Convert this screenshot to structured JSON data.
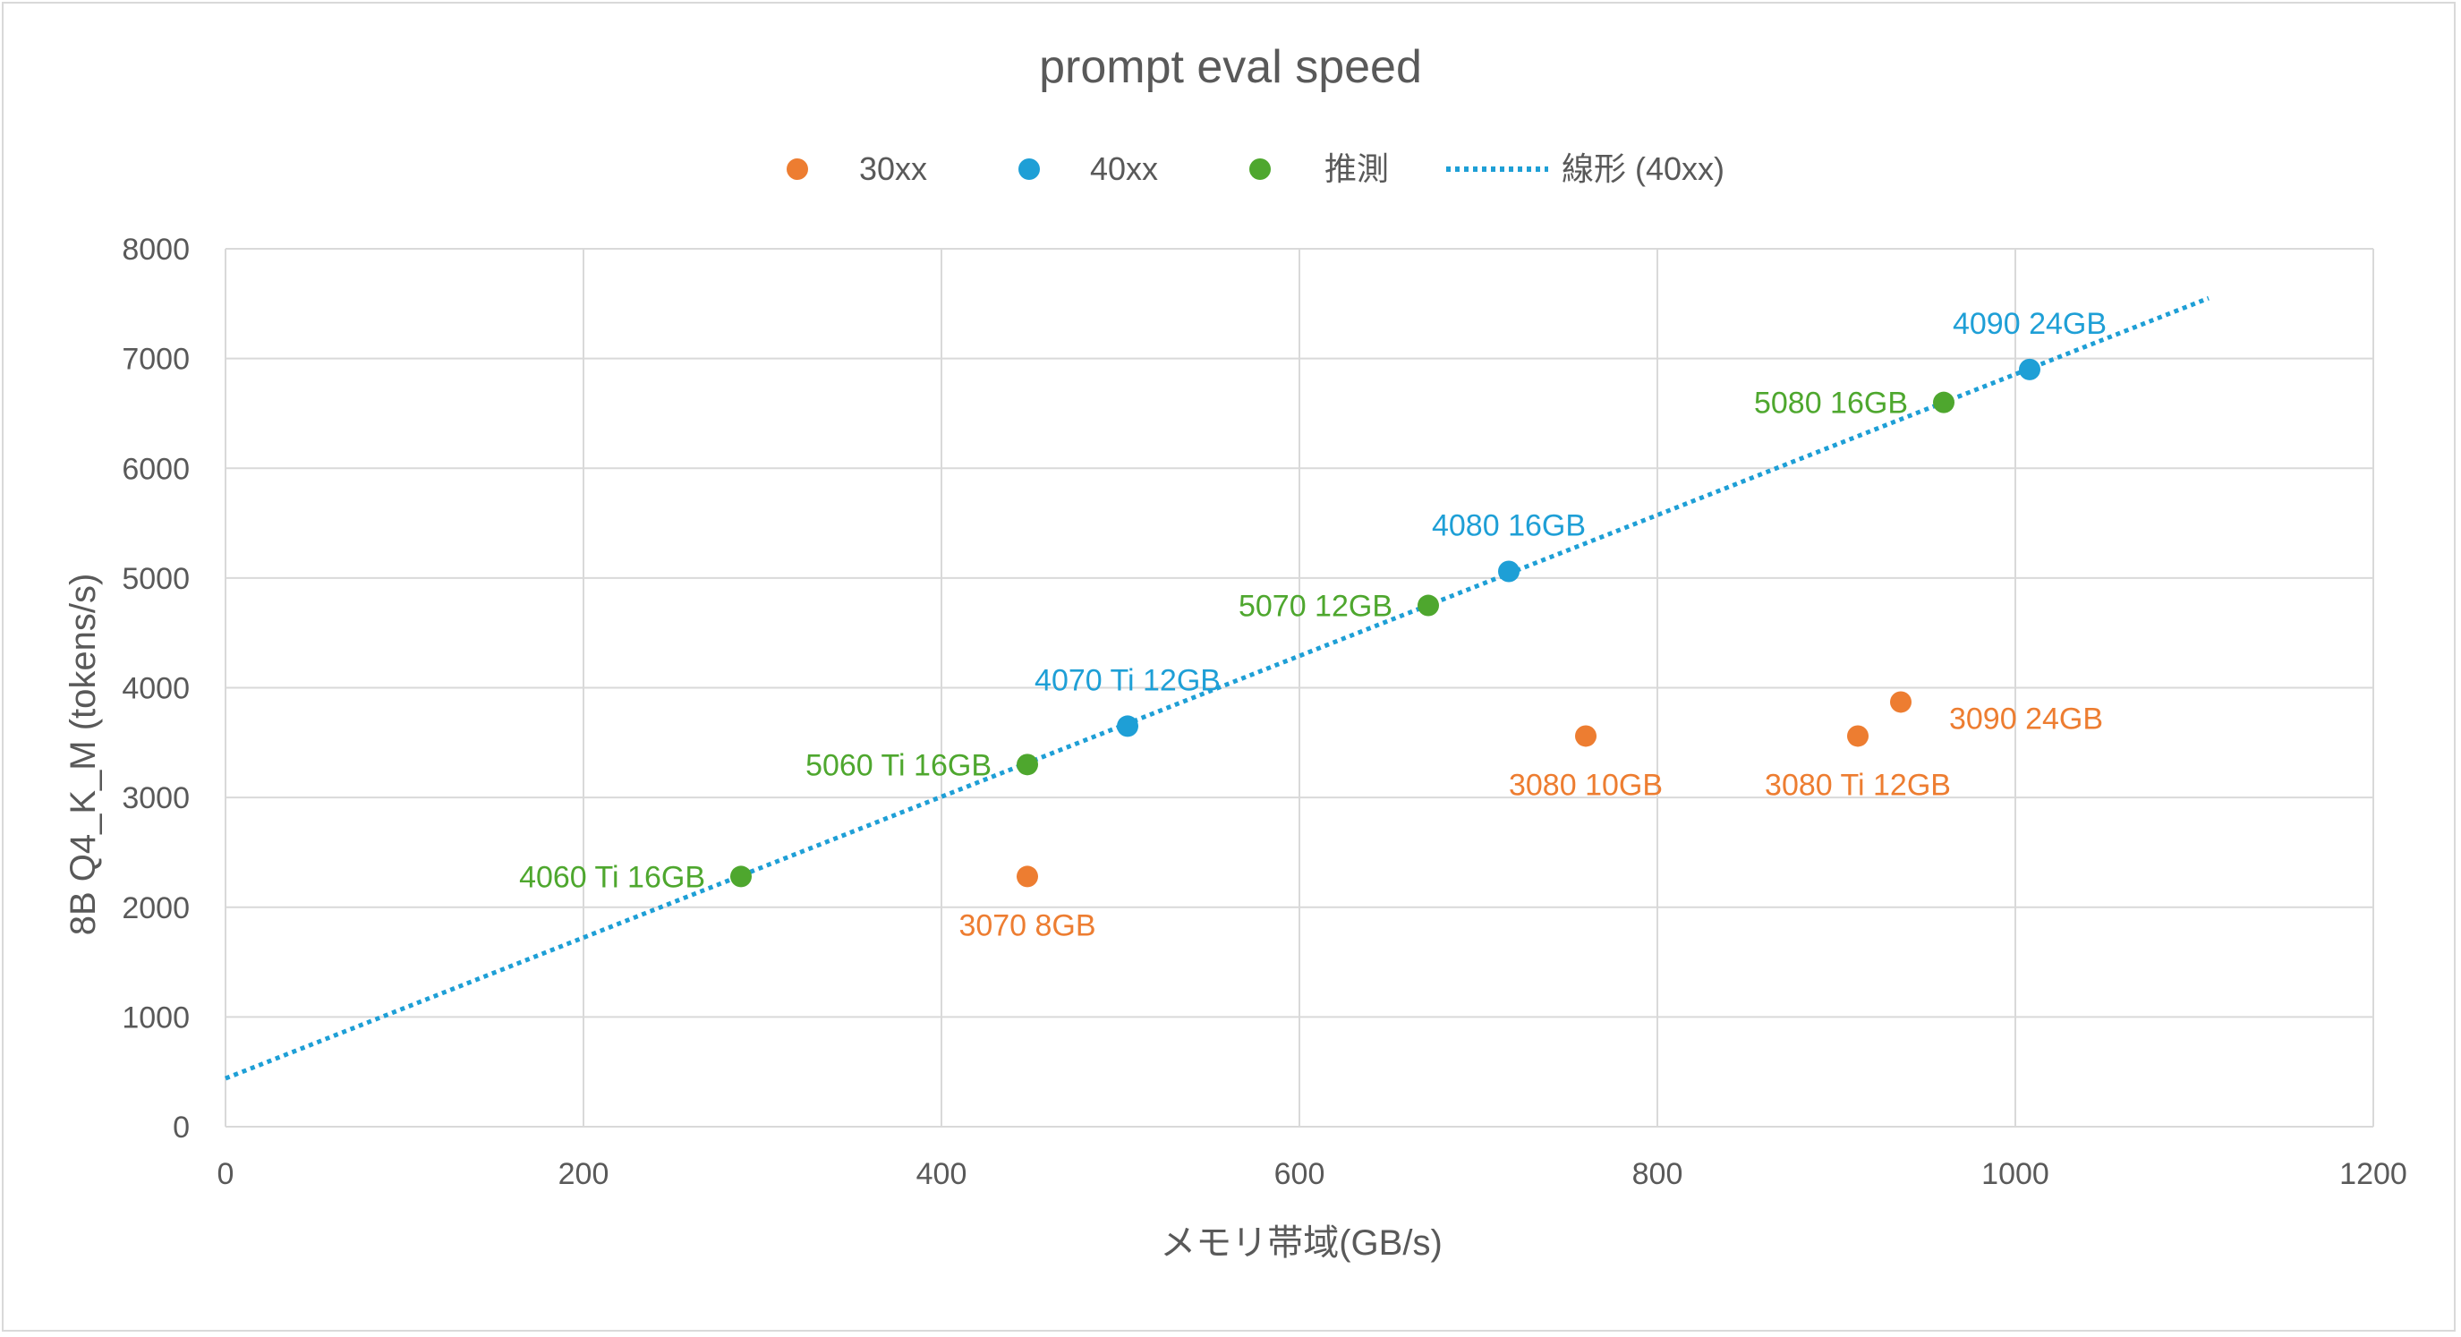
{
  "colors": {
    "series_30xx": "#ED7D31",
    "series_40xx": "#1E9FD6",
    "series_guess": "#4EA72E",
    "trendline": "#1E9FD6",
    "gridline": "#d9d9d9",
    "text": "#595959"
  },
  "chart_data": {
    "type": "scatter",
    "title": "prompt eval speed",
    "xlabel": "メモリ帯域(GB/s)",
    "ylabel": "8B Q4_K_M (tokens/s)",
    "xlim": [
      0,
      1200
    ],
    "ylim": [
      0,
      8000
    ],
    "xticks": [
      "0",
      "200",
      "400",
      "600",
      "800",
      "1000",
      "1200"
    ],
    "yticks": [
      "0",
      "1000",
      "2000",
      "3000",
      "4000",
      "5000",
      "6000",
      "7000",
      "8000"
    ],
    "grid": true,
    "legend_position": "top",
    "legend": [
      "30xx",
      "40xx",
      "推測",
      "線形 (40xx)"
    ],
    "series": [
      {
        "name": "30xx",
        "points": [
          {
            "x": 448,
            "y": 2280,
            "label": "3070 8GB"
          },
          {
            "x": 760,
            "y": 3560,
            "label": "3080 10GB"
          },
          {
            "x": 912,
            "y": 3560,
            "label": "3080 Ti 12GB"
          },
          {
            "x": 936,
            "y": 3870,
            "label": "3090 24GB"
          }
        ]
      },
      {
        "name": "40xx",
        "points": [
          {
            "x": 504,
            "y": 3650,
            "label": "4070 Ti 12GB"
          },
          {
            "x": 717,
            "y": 5060,
            "label": "4080 16GB"
          },
          {
            "x": 1008,
            "y": 6900,
            "label": "4090 24GB"
          }
        ]
      },
      {
        "name": "推測",
        "points": [
          {
            "x": 288,
            "y": 2280,
            "label": "4060 Ti 16GB"
          },
          {
            "x": 448,
            "y": 3300,
            "label": "5060 Ti 16GB"
          },
          {
            "x": 672,
            "y": 4750,
            "label": "5070 12GB"
          },
          {
            "x": 960,
            "y": 6600,
            "label": "5080 16GB"
          }
        ]
      }
    ],
    "trendline": {
      "name": "線形 (40xx)",
      "type": "linear",
      "x_start": 0,
      "y_start": 440,
      "x_end": 1108,
      "y_end": 7550
    }
  }
}
